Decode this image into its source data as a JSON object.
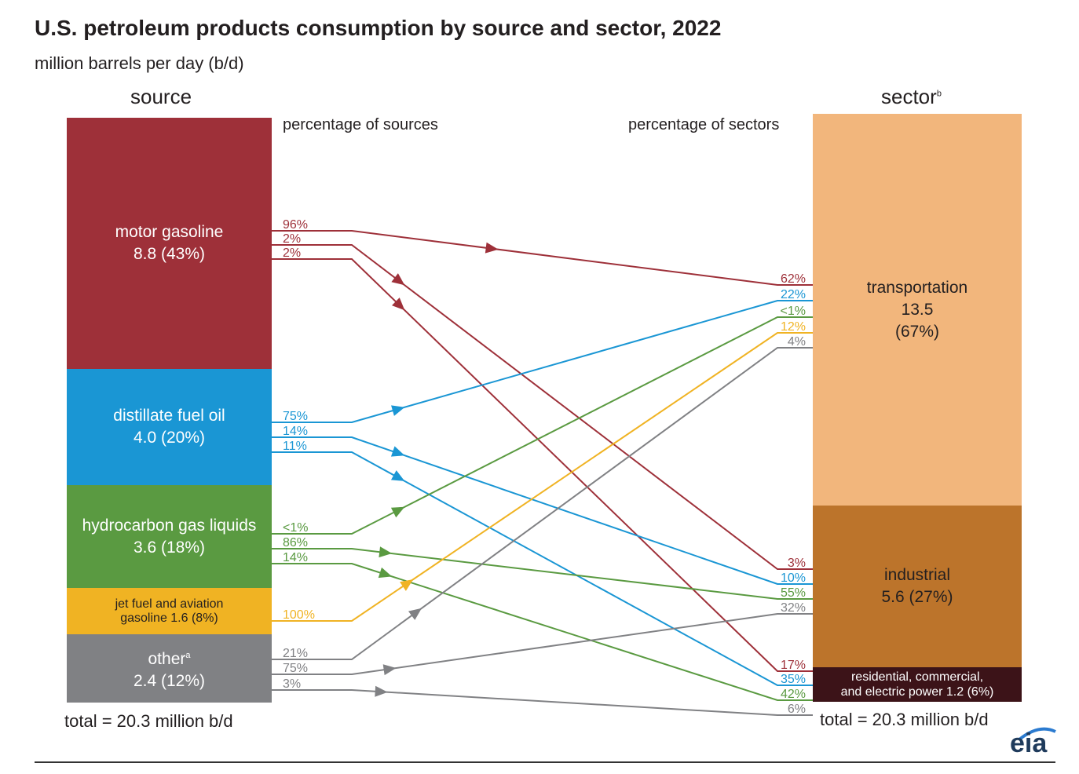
{
  "title": "U.S. petroleum products consumption by source and sector, 2022",
  "subtitle": "million barrels per day (b/d)",
  "source_header": "source",
  "sector_header": "sector",
  "sector_header_sup": "b",
  "pct_sources_label": "percentage of sources",
  "pct_sectors_label": "percentage of sectors",
  "total_left": "total = 20.3 million b/d",
  "total_right": "total = 20.3 million b/d",
  "logo": "eia",
  "sources": [
    {
      "name": "motor gasoline",
      "value": "8.8 (43%)",
      "color": "#9e3039"
    },
    {
      "name": "distillate fuel oil",
      "value": "4.0 (20%)",
      "color": "#1a96d4"
    },
    {
      "name": "hydrocarbon gas liquids",
      "value": "3.6 (18%)",
      "color": "#5a9a41"
    },
    {
      "name": "jet fuel and aviation",
      "name2": "gasoline  1.6 (8%)",
      "color": "#f0b323"
    },
    {
      "name": "other",
      "sup": "a",
      "value": "2.4 (12%)",
      "color": "#808184"
    }
  ],
  "sectors": [
    {
      "name": "transportation",
      "value": "13.5",
      "value2": "(67%)",
      "color": "#f2b67c"
    },
    {
      "name": "industrial",
      "value": "5.6  (27%)",
      "color": "#bc742b"
    },
    {
      "name": "residential, commercial,",
      "value": "and electric power  1.2  (6%)",
      "color": "#3c1318"
    }
  ],
  "flows": [
    {
      "from": "motor gasoline",
      "to": "transportation",
      "src_pct": "96%",
      "dst_pct": "62%",
      "color": "#9e3039"
    },
    {
      "from": "motor gasoline",
      "to": "industrial",
      "src_pct": "2%",
      "dst_pct": "3%",
      "color": "#9e3039"
    },
    {
      "from": "motor gasoline",
      "to": "residential, commercial, and electric power",
      "src_pct": "2%",
      "dst_pct": "17%",
      "color": "#9e3039"
    },
    {
      "from": "distillate fuel oil",
      "to": "transportation",
      "src_pct": "75%",
      "dst_pct": "22%",
      "color": "#1a96d4"
    },
    {
      "from": "distillate fuel oil",
      "to": "industrial",
      "src_pct": "14%",
      "dst_pct": "10%",
      "color": "#1a96d4"
    },
    {
      "from": "distillate fuel oil",
      "to": "residential, commercial, and electric power",
      "src_pct": "11%",
      "dst_pct": "35%",
      "color": "#1a96d4"
    },
    {
      "from": "hydrocarbon gas liquids",
      "to": "transportation",
      "src_pct": "<1%",
      "dst_pct": "<1%",
      "color": "#5a9a41"
    },
    {
      "from": "hydrocarbon gas liquids",
      "to": "industrial",
      "src_pct": "86%",
      "dst_pct": "55%",
      "color": "#5a9a41"
    },
    {
      "from": "hydrocarbon gas liquids",
      "to": "residential, commercial, and electric power",
      "src_pct": "14%",
      "dst_pct": "42%",
      "color": "#5a9a41"
    },
    {
      "from": "jet fuel and aviation gasoline",
      "to": "transportation",
      "src_pct": "100%",
      "dst_pct": "12%",
      "color": "#f0b323"
    },
    {
      "from": "other",
      "to": "transportation",
      "src_pct": "21%",
      "dst_pct": "4%",
      "color": "#808184"
    },
    {
      "from": "other",
      "to": "industrial",
      "src_pct": "75%",
      "dst_pct": "32%",
      "color": "#808184"
    },
    {
      "from": "other",
      "to": "residential, commercial, and electric power",
      "src_pct": "3%",
      "dst_pct": "6%",
      "color": "#808184"
    }
  ]
}
